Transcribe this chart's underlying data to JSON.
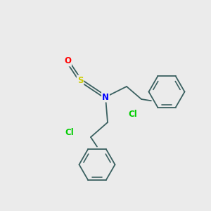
{
  "background_color": "#ebebeb",
  "bond_color": "#3a6060",
  "atom_colors": {
    "O": "#ff0000",
    "S": "#cccc00",
    "N": "#0000ff",
    "Cl": "#00cc00",
    "C": "#3a6060"
  },
  "font_size_atoms": 8.5,
  "figsize": [
    3.0,
    3.0
  ],
  "dpi": 100,
  "lw": 1.3,
  "lw_double_inner": 1.0
}
